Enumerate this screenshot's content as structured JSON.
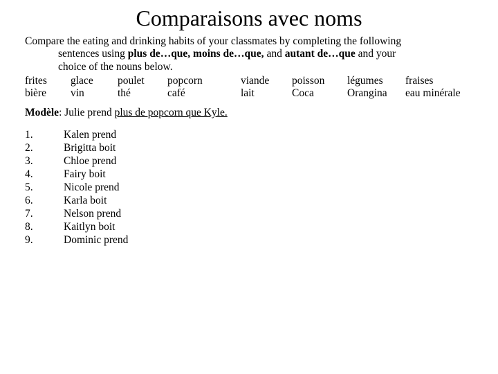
{
  "title": "Comparaisons avec noms",
  "instructions": {
    "line1": "Compare the eating and drinking habits of your classmates by completing the following",
    "line2": "sentences using ",
    "bold1": "plus de…que, moins de…que,",
    "mid": " and ",
    "bold2": "autant de…que",
    "line2end": " and your",
    "line3": "choice of the nouns below."
  },
  "nouns": {
    "row1": [
      "frites",
      "glace",
      "poulet",
      "popcorn",
      "viande",
      "poisson",
      "légumes",
      "fraises"
    ],
    "row2": [
      "bière",
      "vin",
      "thé",
      "café",
      "lait",
      "Coca",
      "Orangina",
      "eau minérale"
    ]
  },
  "modele": {
    "label": "Modèle",
    "sep": ": ",
    "pre": "Julie prend ",
    "under": "plus de popcorn que Kyle."
  },
  "items": [
    {
      "n": "1.",
      "t": "Kalen prend"
    },
    {
      "n": "2.",
      "t": "Brigitta boit"
    },
    {
      "n": "3.",
      "t": "Chloe prend"
    },
    {
      "n": "4.",
      "t": "Fairy boit"
    },
    {
      "n": "5.",
      "t": "Nicole prend"
    },
    {
      "n": "6.",
      "t": "Karla boit"
    },
    {
      "n": "7.",
      "t": "Nelson prend"
    },
    {
      "n": "8.",
      "t": "Kaitlyn boit"
    },
    {
      "n": "9.",
      "t": "Dominic prend"
    }
  ]
}
